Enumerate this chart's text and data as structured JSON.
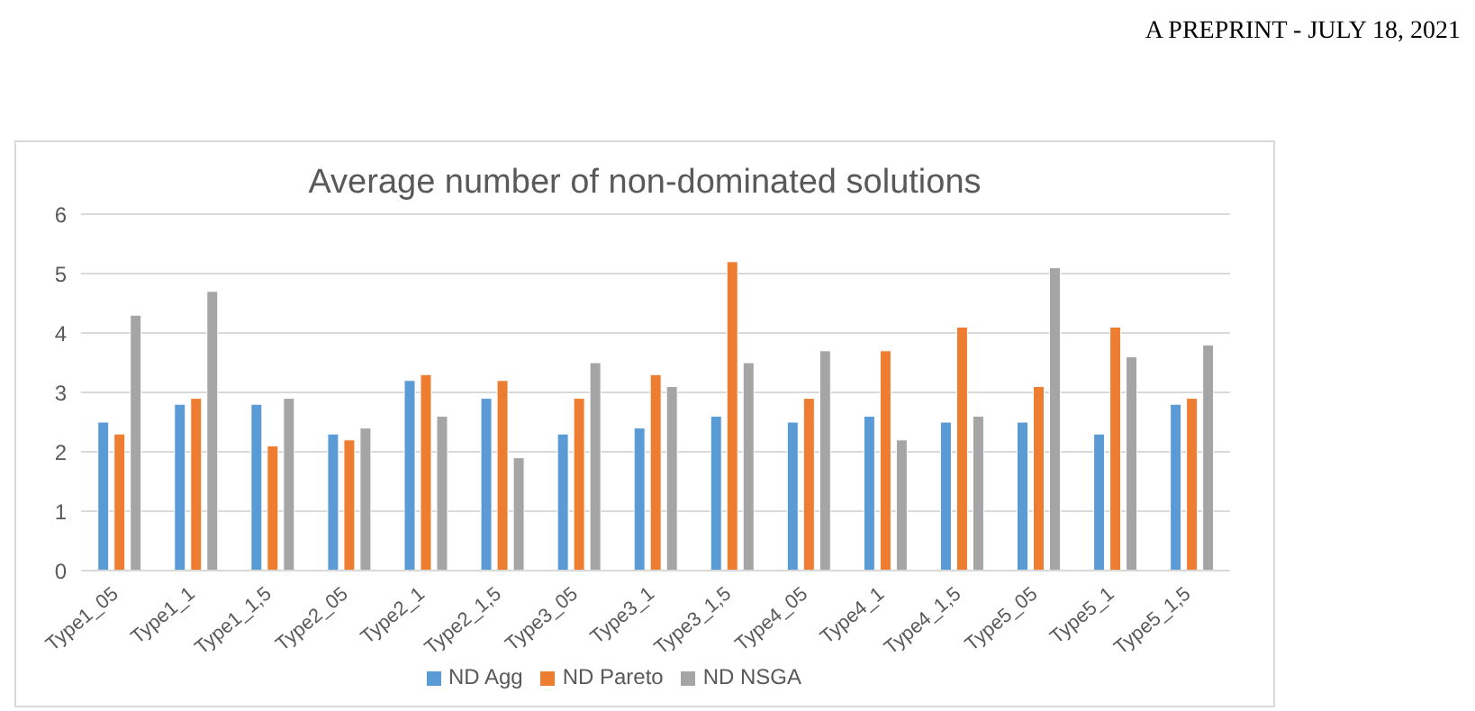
{
  "chart_data": {
    "type": "bar",
    "title": "Average number of non-dominated solutions",
    "annotations": [
      "A PREPRINT - JULY 18, 2021"
    ],
    "categories": [
      "Type1_05",
      "Type1_1",
      "Type1_1,5",
      "Type2_05",
      "Type2_1",
      "Type2_1,5",
      "Type3_05",
      "Type3_1",
      "Type3_1,5",
      "Type4_05",
      "Type4_1",
      "Type4_1,5",
      "Type5_05",
      "Type5_1",
      "Type5_1,5"
    ],
    "series": [
      {
        "name": "ND Agg",
        "color": "#5b9bd5",
        "values": [
          2.5,
          2.8,
          2.8,
          2.3,
          3.2,
          2.9,
          2.3,
          2.4,
          2.6,
          2.5,
          2.6,
          2.5,
          2.5,
          2.3,
          2.8
        ]
      },
      {
        "name": "ND Pareto",
        "color": "#ed7d31",
        "values": [
          2.3,
          2.9,
          2.1,
          2.2,
          3.3,
          3.2,
          2.9,
          3.3,
          5.2,
          2.9,
          3.7,
          4.1,
          3.1,
          4.1,
          2.9
        ]
      },
      {
        "name": "ND NSGA",
        "color": "#a5a5a5",
        "values": [
          4.3,
          4.7,
          2.9,
          2.4,
          2.6,
          1.9,
          3.5,
          3.1,
          3.5,
          3.7,
          2.2,
          2.6,
          5.1,
          3.6,
          3.8
        ]
      }
    ],
    "ylim": [
      0,
      6
    ],
    "yticks": [
      0,
      1,
      2,
      3,
      4,
      5,
      6
    ],
    "grid": "y",
    "legend": "bottom"
  }
}
